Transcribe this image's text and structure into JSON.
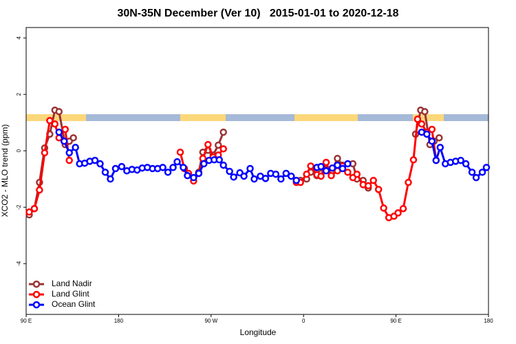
{
  "chart_data": {
    "type": "line",
    "title": "30N-35N December (Ver 10)   2015-01-01 to 2020-12-18",
    "xlabel": "Longitude",
    "ylabel": "XCO2 - MLO trend (ppm)",
    "xlim": [
      90,
      540
    ],
    "ylim": [
      -5.8,
      4.37
    ],
    "xticks": [
      {
        "value": 90,
        "label": "90 E"
      },
      {
        "value": 180,
        "label": "180"
      },
      {
        "value": 270,
        "label": "90 W"
      },
      {
        "value": 360,
        "label": "0"
      },
      {
        "value": 450,
        "label": "90 E"
      },
      {
        "value": 540,
        "label": "180"
      }
    ],
    "yticks": [
      -4,
      -2,
      0,
      2,
      4
    ],
    "legend": "bottomleft",
    "series": [
      {
        "name": "Land Nadir",
        "color": "#993333",
        "x": [
          93,
          98,
          103,
          108,
          113,
          118,
          122,
          128,
          132,
          136,
          null,
          258,
          262,
          267,
          272,
          277,
          282,
          null,
          353,
          357,
          363,
          367,
          373,
          377,
          382,
          387,
          393,
          398,
          403,
          408,
          412,
          418,
          423,
          null,
          469,
          474,
          478,
          483,
          487,
          492
        ],
        "values": [
          -2.27,
          -2.05,
          -1.12,
          0.1,
          0.59,
          1.44,
          1.39,
          0.22,
          0.34,
          0.46,
          null,
          -0.76,
          -0.05,
          0.02,
          -0.15,
          0.2,
          0.66,
          null,
          -1.05,
          -1.05,
          -1.0,
          -0.76,
          -0.88,
          -0.8,
          -0.66,
          -0.76,
          -0.27,
          -0.51,
          -0.46,
          -0.46,
          -1.0,
          -1.05,
          -1.32,
          null,
          0.59,
          1.44,
          1.39,
          0.22,
          0.34,
          0.46
        ]
      },
      {
        "name": "Land Glint",
        "color": "#ff0000",
        "x": [
          93,
          98,
          103,
          108,
          113,
          118,
          122,
          128,
          132,
          null,
          240,
          244,
          248,
          253,
          258,
          262,
          267,
          272,
          277,
          282,
          null,
          353,
          357,
          363,
          367,
          373,
          377,
          382,
          387,
          393,
          398,
          403,
          408,
          412,
          418,
          423,
          428,
          433,
          438,
          443,
          448,
          452,
          457,
          462,
          467,
          471,
          475,
          480,
          485,
          489
        ],
        "values": [
          -2.17,
          -2.05,
          -1.39,
          -0.07,
          1.07,
          0.95,
          0.46,
          0.76,
          -0.34,
          null,
          -0.05,
          -0.63,
          -0.8,
          -1.07,
          -0.8,
          -0.27,
          0.22,
          -0.22,
          -0.15,
          0.07,
          null,
          -1.12,
          -1.12,
          -0.83,
          -0.54,
          -0.85,
          -0.9,
          -0.41,
          -0.88,
          -0.71,
          -0.54,
          -0.76,
          -0.95,
          -0.83,
          -1.2,
          -1.24,
          -1.05,
          -1.37,
          -2.03,
          -2.37,
          -2.32,
          -2.2,
          -2.05,
          -1.12,
          -0.32,
          1.12,
          0.95,
          0.66,
          0.76,
          -0.34
        ]
      },
      {
        "name": "Ocean Glint",
        "color": "#0000ff",
        "x": [
          122,
          127,
          132,
          138,
          142,
          147,
          152,
          157,
          162,
          167,
          172,
          177,
          183,
          188,
          193,
          198,
          203,
          208,
          213,
          218,
          223,
          228,
          233,
          237,
          243,
          247,
          253,
          258,
          263,
          268,
          273,
          278,
          282,
          288,
          292,
          298,
          302,
          308,
          312,
          318,
          323,
          328,
          333,
          338,
          343,
          348,
          353,
          null,
          373,
          377,
          382,
          388,
          393,
          398,
          403,
          null,
          475,
          480,
          485,
          489,
          493,
          498,
          503,
          508,
          513,
          518,
          524,
          528,
          534,
          538
        ],
        "values": [
          0.66,
          0.34,
          -0.07,
          0.12,
          -0.46,
          -0.44,
          -0.37,
          -0.34,
          -0.46,
          -0.76,
          -1.0,
          -0.63,
          -0.56,
          -0.71,
          -0.66,
          -0.68,
          -0.61,
          -0.59,
          -0.63,
          -0.63,
          -0.59,
          -0.76,
          -0.59,
          -0.39,
          -0.59,
          -0.88,
          -0.95,
          -0.8,
          -0.46,
          -0.34,
          -0.32,
          -0.32,
          -0.51,
          -0.73,
          -0.93,
          -0.78,
          -0.9,
          -0.63,
          -1.0,
          -0.9,
          -0.98,
          -0.8,
          -0.83,
          -1.0,
          -0.8,
          -0.9,
          -1.05,
          null,
          -0.59,
          -0.56,
          -0.71,
          -0.61,
          -0.51,
          -0.63,
          -0.46,
          null,
          0.66,
          0.59,
          0.34,
          -0.34,
          0.12,
          -0.46,
          -0.41,
          -0.37,
          -0.34,
          -0.46,
          -0.76,
          -0.95,
          -0.76,
          -0.59
        ]
      }
    ]
  }
}
